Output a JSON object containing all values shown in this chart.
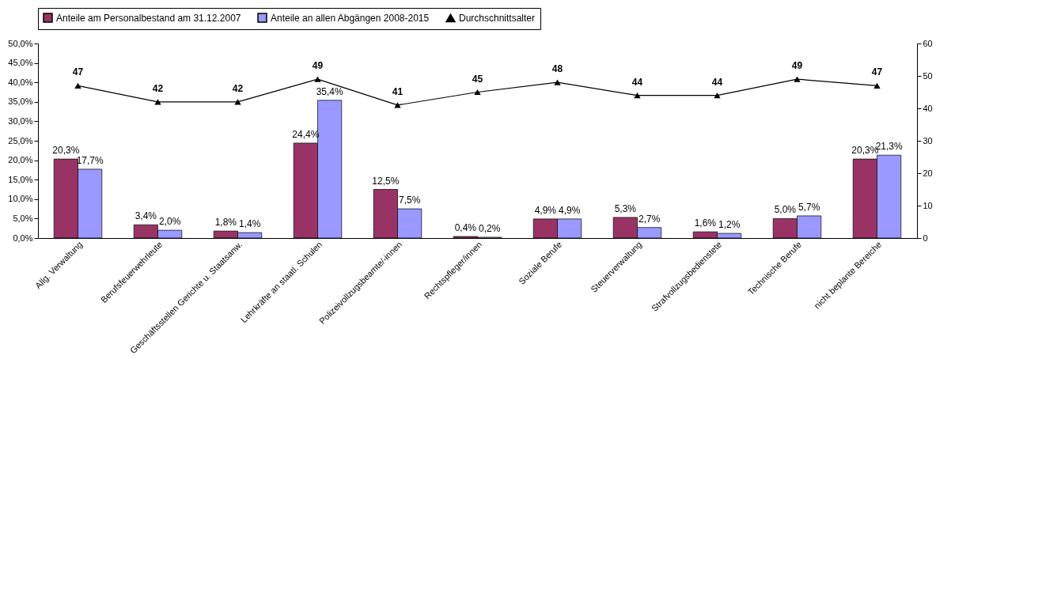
{
  "chart_data": {
    "type": "bar",
    "categories": [
      "Allg. Verwaltung",
      "Berufsfeuerwehrleute",
      "Geschäftsstellen Gerichte u. Staatsanw.",
      "Lehrkräfte an staatl. Schulen",
      "Polizeivollzugsbeamte/-innen",
      "Rechtspfleger/innen",
      "Soziale Berufe",
      "Steuerverwaltung",
      "Strafvollzugsbedienstete",
      "Technische Berufe",
      "nicht beplante Bereiche"
    ],
    "series": [
      {
        "name": "Anteile am Personalbestand am 31.12.2007",
        "color": "#993366",
        "values": [
          20.3,
          3.4,
          1.8,
          24.4,
          12.5,
          0.4,
          4.9,
          5.3,
          1.6,
          5.0,
          20.3
        ],
        "value_labels": [
          "20,3%",
          "3,4%",
          "1,8%",
          "24,4%",
          "12,5%",
          "0,4%",
          "4,9%",
          "5,3%",
          "1,6%",
          "5,0%",
          "20,3%"
        ]
      },
      {
        "name": "Anteile an allen Abgängen 2008-2015",
        "color": "#9999ff",
        "values": [
          17.7,
          2.0,
          1.4,
          35.4,
          7.5,
          0.2,
          4.9,
          2.7,
          1.2,
          5.7,
          21.3
        ],
        "value_labels": [
          "17,7%",
          "2,0%",
          "1,4%",
          "35,4%",
          "7,5%",
          "0,2%",
          "4,9%",
          "2,7%",
          "1,2%",
          "5,7%",
          "21,3%"
        ]
      },
      {
        "name": "Durchschnittsalter",
        "type": "line",
        "axis": "y2",
        "color": "#000000",
        "marker": "triangle",
        "values": [
          47,
          42,
          42,
          49,
          41,
          45,
          48,
          44,
          44,
          49,
          47
        ],
        "value_labels": [
          "47",
          "42",
          "42",
          "49",
          "41",
          "45",
          "48",
          "44",
          "44",
          "49",
          "47"
        ]
      }
    ],
    "ylim": [
      0,
      50
    ],
    "yticks": [
      {
        "value": 0,
        "label": "0,0%"
      },
      {
        "value": 5,
        "label": "5,0%"
      },
      {
        "value": 10,
        "label": "10,0%"
      },
      {
        "value": 15,
        "label": "15,0%"
      },
      {
        "value": 20,
        "label": "20,0%"
      },
      {
        "value": 25,
        "label": "25,0%"
      },
      {
        "value": 30,
        "label": "30,0%"
      },
      {
        "value": 35,
        "label": "35,0%"
      },
      {
        "value": 40,
        "label": "40,0%"
      },
      {
        "value": 45,
        "label": "45,0%"
      },
      {
        "value": 50,
        "label": "50,0%"
      }
    ],
    "y2lim": [
      0,
      60
    ],
    "y2ticks": [
      0,
      10,
      20,
      30,
      40,
      50,
      60
    ],
    "grid": false,
    "legend": "top"
  }
}
